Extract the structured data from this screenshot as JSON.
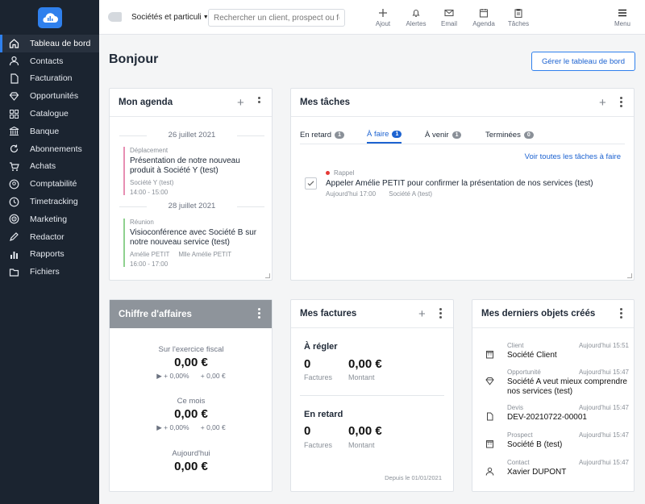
{
  "colors": {
    "accent": "#2f80ed",
    "sidebar_bg": "#1b2430",
    "sidebar_active": "#28313e",
    "ca_header": "#8e949b",
    "rappel_dot": "#e53935"
  },
  "sidebar": {
    "items": [
      {
        "label": "Tableau de bord",
        "icon": "home-icon"
      },
      {
        "label": "Contacts",
        "icon": "user-icon"
      },
      {
        "label": "Facturation",
        "icon": "document-icon"
      },
      {
        "label": "Opportunités",
        "icon": "diamond-icon"
      },
      {
        "label": "Catalogue",
        "icon": "grid-icon"
      },
      {
        "label": "Banque",
        "icon": "bank-icon"
      },
      {
        "label": "Abonnements",
        "icon": "refresh-icon"
      },
      {
        "label": "Achats",
        "icon": "cart-icon"
      },
      {
        "label": "Comptabilité",
        "icon": "user-circle-icon"
      },
      {
        "label": "Timetracking",
        "icon": "clock-icon"
      },
      {
        "label": "Marketing",
        "icon": "target-icon"
      },
      {
        "label": "Redactor",
        "icon": "pen-icon"
      },
      {
        "label": "Rapports",
        "icon": "bar-chart-icon"
      },
      {
        "label": "Fichiers",
        "icon": "folder-icon"
      }
    ]
  },
  "topbar": {
    "filter_label": "Sociétés et particuli",
    "search_placeholder": "Rechercher un client, prospect ou four",
    "actions": {
      "add": "Ajout",
      "alerts": "Alertes",
      "email": "Email",
      "agenda": "Agenda",
      "tasks": "Tâches",
      "menu": "Menu"
    }
  },
  "main": {
    "title": "Bonjour",
    "manage_button": "Gérer le tableau de bord"
  },
  "agenda": {
    "title": "Mon agenda",
    "days": [
      {
        "date": "26 juillet 2021",
        "event": {
          "type": "Déplacement",
          "title": "Présentation de notre nouveau produit à Société Y (test)",
          "company": "Société Y (test)",
          "time": "14:00 - 15:00",
          "color": "#e78fb3"
        }
      },
      {
        "date": "28 juillet 2021",
        "event": {
          "type": "Réunion",
          "title": "Visioconférence avec Société B sur notre nouveau service (test)",
          "people": "Amélie PETIT     Mlle Amélie PETIT",
          "time": "16:00 - 17:00",
          "color": "#8fd18f"
        }
      }
    ]
  },
  "tasks": {
    "title": "Mes tâches",
    "tabs": [
      {
        "label": "En retard",
        "count": "1"
      },
      {
        "label": "À faire",
        "count": "1"
      },
      {
        "label": "À venir",
        "count": "1"
      },
      {
        "label": "Terminées",
        "count": "0"
      }
    ],
    "view_all": "Voir toutes les tâches à faire",
    "item": {
      "kind": "Rappel",
      "title": "Appeler Amélie PETIT pour confirmer la présentation de nos services (test)",
      "due": "Aujourd'hui 17:00",
      "company": "Société A (test)"
    }
  },
  "revenue": {
    "title": "Chiffre d'affaires",
    "blocks": [
      {
        "label": "Sur l'exercice fiscal",
        "value": "0,00 €",
        "trend": "▶ + 0,00%      + 0,00 €"
      },
      {
        "label": "Ce mois",
        "value": "0,00 €",
        "trend": "▶ + 0,00%      + 0,00 €"
      },
      {
        "label": "Aujourd'hui",
        "value": "0,00 €"
      }
    ]
  },
  "invoices": {
    "title": "Mes factures",
    "sections": [
      {
        "label": "À régler",
        "count": "0",
        "count_label": "Factures",
        "amount": "0,00 €",
        "amount_label": "Montant"
      },
      {
        "label": "En retard",
        "count": "0",
        "count_label": "Factures",
        "amount": "0,00 €",
        "amount_label": "Montant"
      }
    ],
    "since": "Depuis le 01/01/2021"
  },
  "recent": {
    "title": "Mes derniers objets créés",
    "items": [
      {
        "type": "Client",
        "time": "Aujourd'hui 15:51",
        "name": "Société Client",
        "icon": "building-icon"
      },
      {
        "type": "Opportunité",
        "time": "Aujourd'hui 15:47",
        "name": "Société A veut mieux comprendre nos services (test)",
        "icon": "diamond-icon"
      },
      {
        "type": "Devis",
        "time": "Aujourd'hui 15:47",
        "name": "DEV-20210722-00001",
        "icon": "document-icon"
      },
      {
        "type": "Prospect",
        "time": "Aujourd'hui 15:47",
        "name": "Société B (test)",
        "icon": "building-icon"
      },
      {
        "type": "Contact",
        "time": "Aujourd'hui 15:47",
        "name": "Xavier DUPONT",
        "icon": "user-icon"
      }
    ]
  }
}
